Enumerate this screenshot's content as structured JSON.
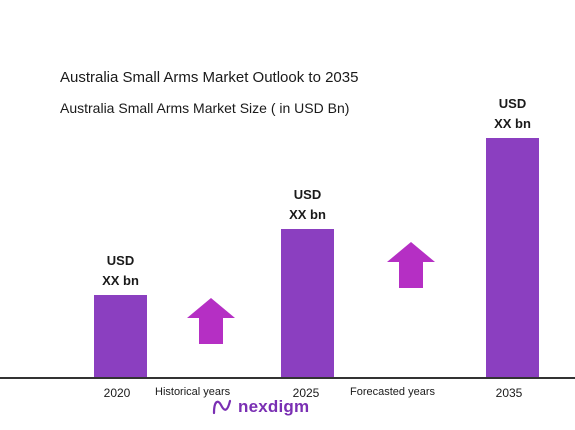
{
  "chart_data": {
    "type": "bar",
    "title": "Australia Small Arms Market Outlook to 2035",
    "subtitle": "Australia Small Arms Market Size  ( in USD Bn)",
    "categories": [
      "2020",
      "2025",
      "2035"
    ],
    "values": [
      1.0,
      1.8,
      2.9
    ],
    "value_labels": [
      {
        "line1": "USD",
        "line2": "XX bn"
      },
      {
        "line1": "USD",
        "line2": "XX bn"
      },
      {
        "line1": "USD",
        "line2": "XX bn"
      }
    ],
    "period_labels": {
      "historical": "Historical years",
      "forecast": "Forecasted years"
    },
    "ylim": [
      0,
      3.0
    ],
    "grid": false,
    "legend": "none",
    "colors": {
      "bar": "#8b3fc0",
      "arrow": "#b52fc4",
      "axis": "#333333"
    }
  },
  "brand": {
    "logo_text": "nexdigm",
    "logo_icon": "nexdigm-logo-icon"
  }
}
